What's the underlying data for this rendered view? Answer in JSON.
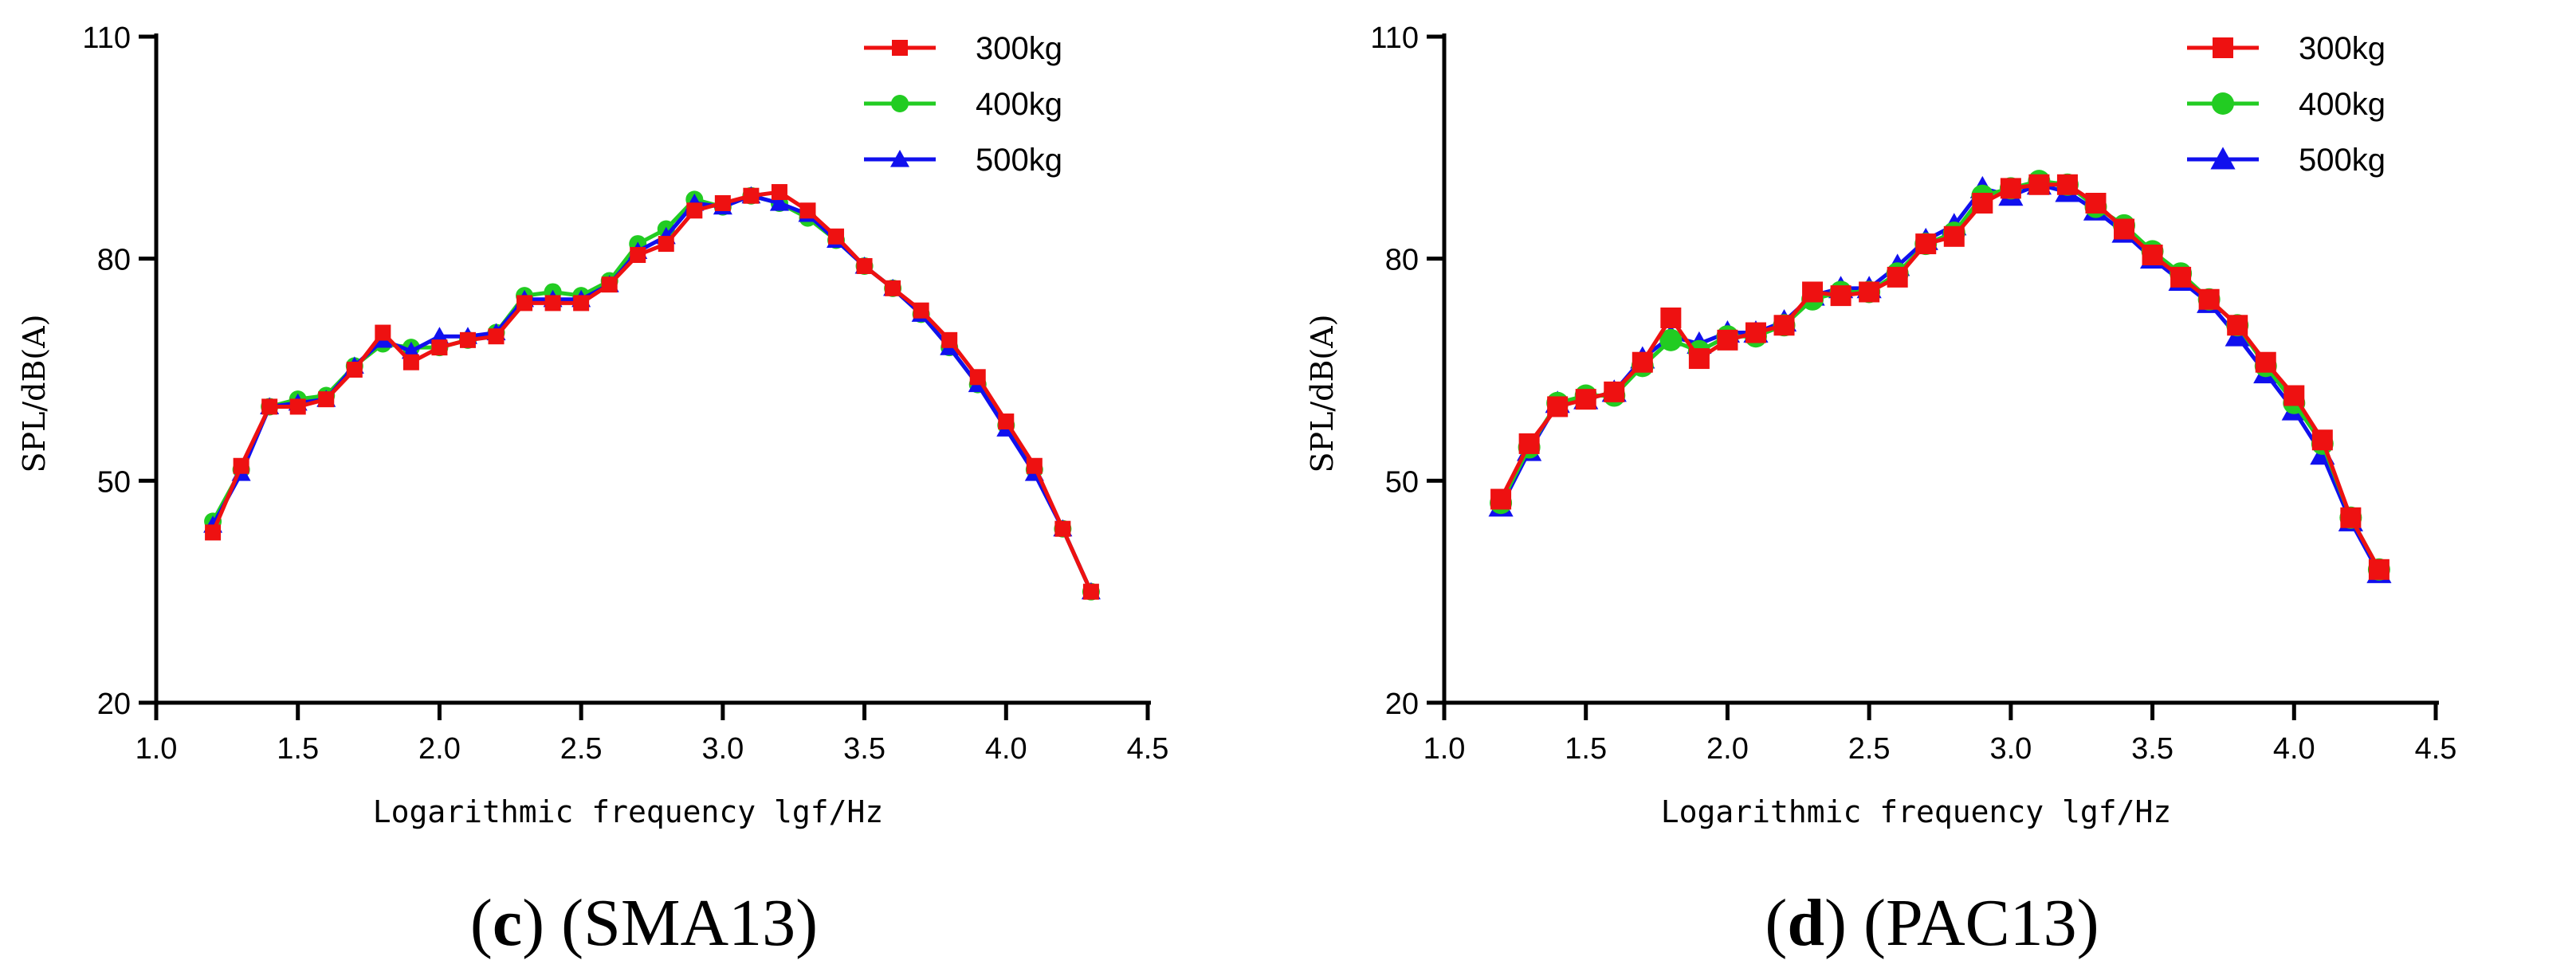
{
  "chart_data": [
    {
      "type": "line",
      "panel_letter": "c",
      "panel_title": "(SMA13)",
      "xlabel": "Logarithmic frequency lgf/Hz",
      "ylabel": "SPL/dB(A)",
      "xlim": [
        1.0,
        4.5
      ],
      "ylim": [
        20,
        110
      ],
      "xticks": [
        "1.0",
        "1.5",
        "2.0",
        "2.5",
        "3.0",
        "3.5",
        "4.0",
        "4.5"
      ],
      "yticks": [
        "20",
        "50",
        "80",
        "110"
      ],
      "legend_position": "top-right",
      "x": [
        1.2,
        1.3,
        1.4,
        1.5,
        1.6,
        1.7,
        1.8,
        1.9,
        2.0,
        2.1,
        2.2,
        2.3,
        2.4,
        2.5,
        2.6,
        2.7,
        2.8,
        2.9,
        3.0,
        3.1,
        3.2,
        3.3,
        3.4,
        3.5,
        3.6,
        3.7,
        3.8,
        3.9,
        4.0,
        4.1,
        4.2,
        4.3
      ],
      "series": [
        {
          "name": "400kg",
          "color": "#22cc22",
          "marker": "circle",
          "values": [
            44.5,
            51.5,
            60,
            61,
            61.5,
            65.5,
            68.5,
            68,
            68,
            69,
            70,
            75,
            75.5,
            75,
            77,
            82,
            84,
            88,
            87,
            88.5,
            87.5,
            85.5,
            82.5,
            79,
            76,
            72.5,
            68,
            63,
            57.5,
            51.5,
            43.5,
            35
          ]
        },
        {
          "name": "500kg",
          "color": "#1010ee",
          "marker": "triangle",
          "values": [
            44,
            51,
            60,
            60.5,
            61,
            65.5,
            69,
            67.5,
            69.5,
            69.5,
            70,
            74.5,
            74.5,
            74.5,
            76.5,
            81,
            83,
            87.5,
            87,
            88.5,
            87.5,
            86,
            82.5,
            79,
            76,
            72.5,
            68,
            63,
            57,
            51,
            43.5,
            35
          ]
        },
        {
          "name": "300kg",
          "color": "#ee1111",
          "marker": "square",
          "values": [
            43,
            52,
            60,
            60,
            61,
            65,
            70,
            66,
            68,
            69,
            69.5,
            74,
            74,
            74,
            76.5,
            80.5,
            82,
            86.5,
            87.5,
            88.5,
            89,
            86.5,
            83,
            79,
            76,
            73,
            69,
            64,
            58,
            52,
            43.5,
            35
          ]
        }
      ]
    },
    {
      "type": "line",
      "panel_letter": "d",
      "panel_title": "(PAC13)",
      "xlabel": "Logarithmic frequency lgf/Hz",
      "ylabel": "SPL/dB(A)",
      "xlim": [
        1.0,
        4.5
      ],
      "ylim": [
        20,
        110
      ],
      "xticks": [
        "1.0",
        "1.5",
        "2.0",
        "2.5",
        "3.0",
        "3.5",
        "4.0",
        "4.5"
      ],
      "yticks": [
        "20",
        "50",
        "80",
        "110"
      ],
      "legend_position": "top-right",
      "x": [
        1.2,
        1.3,
        1.4,
        1.5,
        1.6,
        1.7,
        1.8,
        1.9,
        2.0,
        2.1,
        2.2,
        2.3,
        2.4,
        2.5,
        2.6,
        2.7,
        2.8,
        2.9,
        3.0,
        3.1,
        3.2,
        3.3,
        3.4,
        3.5,
        3.6,
        3.7,
        3.8,
        3.9,
        4.0,
        4.1,
        4.2,
        4.3
      ],
      "series": [
        {
          "name": "500kg",
          "color": "#1010ee",
          "marker": "triangle",
          "values": [
            46.5,
            54,
            60.5,
            61,
            62,
            66.5,
            69.5,
            68.5,
            70,
            70,
            71.5,
            75,
            76,
            76,
            79,
            82.5,
            84.5,
            89.5,
            88.5,
            90,
            89,
            86.5,
            83.5,
            80,
            77,
            74,
            69.5,
            64.5,
            59.5,
            53.5,
            44.5,
            37.5
          ]
        },
        {
          "name": "400kg",
          "color": "#22cc22",
          "marker": "circle",
          "values": [
            47,
            54.5,
            60.5,
            61.5,
            61.5,
            65.5,
            69,
            67.5,
            69.5,
            69.5,
            71,
            74.5,
            75.5,
            75.5,
            78,
            82,
            83.5,
            88.5,
            89.5,
            90.5,
            90,
            87,
            84.5,
            81,
            78,
            74.5,
            71,
            65.5,
            60.5,
            55,
            45,
            38
          ]
        },
        {
          "name": "300kg",
          "color": "#ee1111",
          "marker": "square",
          "values": [
            47.5,
            55,
            60,
            61,
            62,
            66,
            72,
            66.5,
            69,
            70,
            71,
            75.5,
            75,
            75.5,
            77.5,
            82,
            83,
            87.5,
            89.5,
            90,
            90,
            87.5,
            84,
            80.5,
            77.5,
            74.5,
            71,
            66,
            61.5,
            55.5,
            45,
            38
          ]
        }
      ]
    }
  ]
}
